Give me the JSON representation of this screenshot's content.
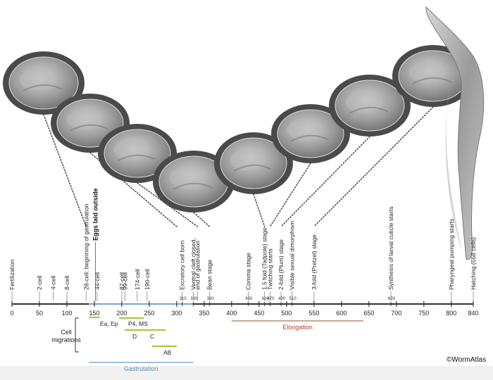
{
  "timeline": {
    "ticks": [
      0,
      50,
      100,
      150,
      200,
      250,
      300,
      350,
      400,
      450,
      500,
      550,
      600,
      650,
      700,
      750,
      800,
      840
    ],
    "events": [
      {
        "t": 0,
        "label": "Fertilization"
      },
      {
        "t": 50,
        "label": "2-cell"
      },
      {
        "t": 75,
        "label": "4-cell"
      },
      {
        "t": 100,
        "label": "8-cell"
      },
      {
        "t": 135,
        "label": "28-cell: beginning of gastrulation"
      },
      {
        "t": 155,
        "label": "44-cell"
      },
      {
        "t": 200,
        "label": "87-cell"
      },
      {
        "t": 206,
        "label": "99-cell"
      },
      {
        "t": 228,
        "label": "174-cell"
      },
      {
        "t": 246,
        "label": "190-cell"
      },
      {
        "t": 310,
        "label": "Excretory cell born"
      },
      {
        "t": 330,
        "label": "Ventral cleft closed,"
      },
      {
        "t": 338,
        "label": "end of gastrulation"
      },
      {
        "t": 360,
        "label": "Bean stage"
      },
      {
        "t": 430,
        "label": "Comma stage"
      },
      {
        "t": 460,
        "label": "1.5 fold (Tadpole) stage"
      },
      {
        "t": 470,
        "label": "Twitching starts"
      },
      {
        "t": 490,
        "label": "2-fold (Plum) stage"
      },
      {
        "t": 510,
        "label": "Visible sexual dimorphism"
      },
      {
        "t": 550,
        "label": "3-fold (Pretzel) stage"
      },
      {
        "t": 690,
        "label": "Synthesis of larval cuticle starts"
      },
      {
        "t": 800,
        "label": "Pharyngeal pumping starts"
      },
      {
        "t": 840,
        "label": "Hatching (558 cells)"
      }
    ],
    "highlight": {
      "t": 152,
      "label": "Eggs laid outside"
    },
    "minor_labels": [
      {
        "t": 310,
        "label": "310"
      },
      {
        "t": 330,
        "label": "330"
      },
      {
        "t": 360,
        "label": "360"
      },
      {
        "t": 430,
        "label": "430"
      },
      {
        "t": 460,
        "label": "460"
      },
      {
        "t": 470,
        "label": "470"
      },
      {
        "t": 490,
        "label": "490"
      },
      {
        "t": 510,
        "label": "510"
      },
      {
        "t": 690,
        "label": "690"
      }
    ]
  },
  "cell_migrations": {
    "title_line1": "Cell",
    "title_line2": "migrations",
    "bars": [
      {
        "label": "Ea, Ep",
        "start": 140,
        "end": 160,
        "color": "#b5c23a"
      },
      {
        "label": "P4, MS",
        "start": 195,
        "end": 240,
        "color": "#b5c23a"
      },
      {
        "label": "D",
        "start": 205,
        "end": 228,
        "color": "#b5c23a"
      },
      {
        "label": "C",
        "start": 222,
        "end": 280,
        "color": "#b5c23a"
      },
      {
        "label": "AB",
        "start": 255,
        "end": 300,
        "color": "#b5c23a"
      }
    ]
  },
  "phases": [
    {
      "label": "Gastrulation",
      "start": 140,
      "end": 330,
      "color": "#8fb8d8",
      "text_color": "#5d8fb8"
    },
    {
      "label": "Elongation",
      "start": 400,
      "end": 640,
      "color": "#c99a88",
      "text_color": "#c0392b"
    }
  ],
  "embryos": [
    {
      "name": "embryo-early",
      "anchor": 40
    },
    {
      "name": "embryo-28cell",
      "anchor": 150
    },
    {
      "name": "embryo-gastrula",
      "anchor": 230
    },
    {
      "name": "embryo-late-gastrula",
      "anchor": 300
    },
    {
      "name": "embryo-bean",
      "anchor": 360
    },
    {
      "name": "embryo-comma",
      "anchor": 430
    },
    {
      "name": "embryo-1.5fold",
      "anchor": 470
    },
    {
      "name": "embryo-2fold",
      "anchor": 490
    },
    {
      "name": "embryo-3fold",
      "anchor": 550
    }
  ],
  "credit": "©WormAtlas",
  "colors": {
    "axis": "#333333",
    "tick": "#333333",
    "gastrulation_tick": "#7aa6cc",
    "dots": "#555555"
  }
}
